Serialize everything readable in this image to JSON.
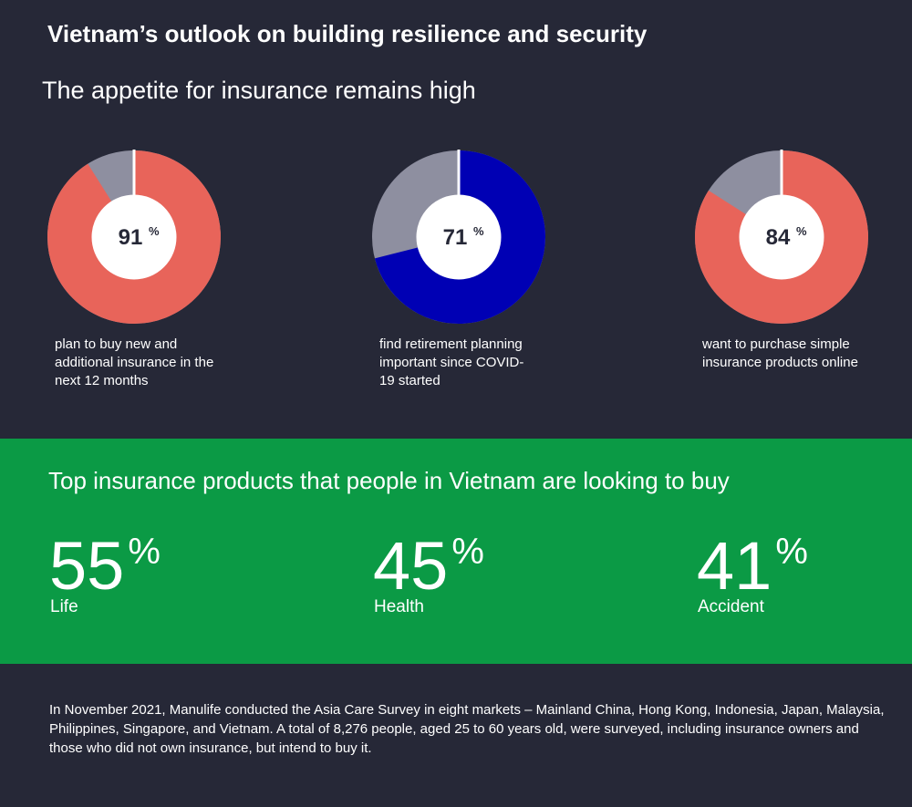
{
  "header": {
    "title": "Vietnam’s outlook on building resilience and security",
    "subtitle": "The appetite for insurance remains high"
  },
  "unit": "%",
  "donuts": [
    {
      "value": 91,
      "label": "plan to buy new and additional insurance in the next 12 months",
      "color": "#e8645a"
    },
    {
      "value": 71,
      "label": "find retirement planning important since COVID-19 started",
      "color": "#0000b4"
    },
    {
      "value": 84,
      "label": "want to purchase simple insurance products online",
      "color": "#e8645a"
    }
  ],
  "products": {
    "title": "Top insurance products that people in Vietnam are looking to buy",
    "items": [
      {
        "value": 55,
        "name": "Life"
      },
      {
        "value": 45,
        "name": "Health"
      },
      {
        "value": 41,
        "name": "Accident"
      }
    ]
  },
  "footnote": "In November 2021, Manulife conducted the Asia Care Survey in eight markets – Mainland China, Hong Kong, Indonesia, Japan, Malaysia, Philippines, Singapore, and Vietnam. A total of 8,276 people, aged 25 to 60 years old, were surveyed, including insurance owners and those who did not own insurance, but intend to buy it."
}
